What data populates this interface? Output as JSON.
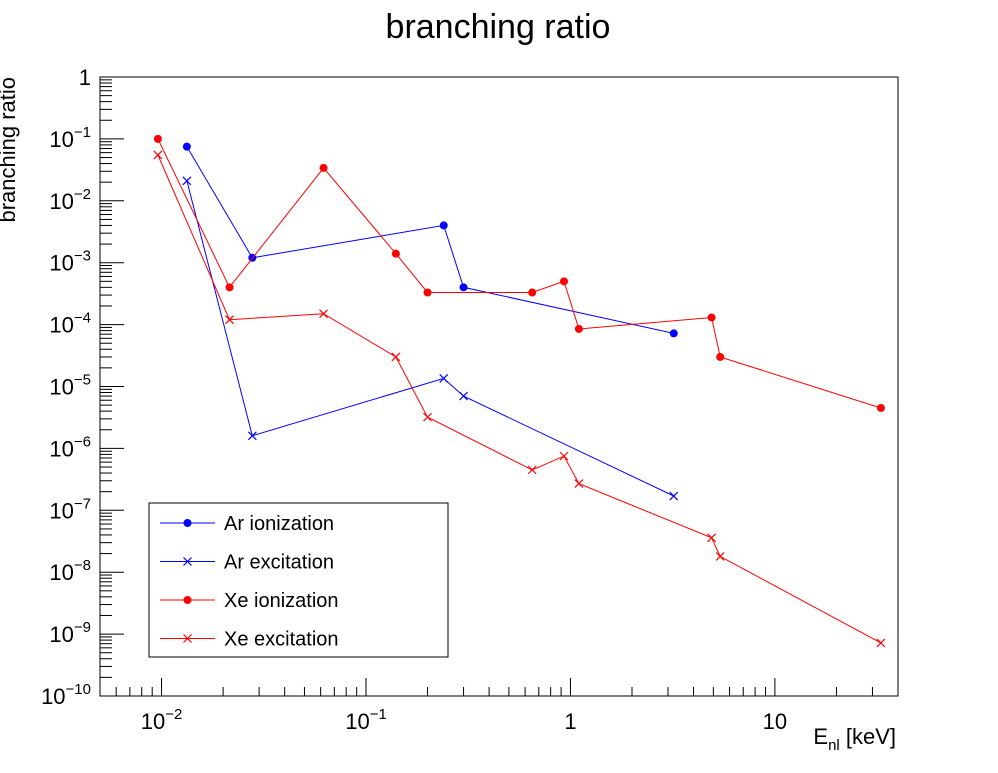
{
  "chart_data": {
    "type": "line",
    "title": "branching ratio",
    "ylabel": "branching ratio",
    "xlabel": {
      "main": "E",
      "sub": "nl",
      "unit": " [keV]"
    },
    "xscale": "log",
    "yscale": "log",
    "xlim": [
      0.005,
      40
    ],
    "ylim": [
      1e-10,
      1
    ],
    "grid": false,
    "legend_position": "bottom-left",
    "x_tick_labels": [
      {
        "value": 0.01,
        "base": "10",
        "exp": "−2"
      },
      {
        "value": 0.1,
        "base": "10",
        "exp": "−1"
      },
      {
        "value": 1,
        "base": "1",
        "exp": ""
      },
      {
        "value": 10,
        "base": "10",
        "exp": ""
      }
    ],
    "y_tick_labels": [
      {
        "value": 1,
        "base": "1",
        "exp": ""
      },
      {
        "value": 0.1,
        "base": "10",
        "exp": "−1"
      },
      {
        "value": 0.01,
        "base": "10",
        "exp": "−2"
      },
      {
        "value": 0.001,
        "base": "10",
        "exp": "−3"
      },
      {
        "value": 0.0001,
        "base": "10",
        "exp": "−4"
      },
      {
        "value": 1e-05,
        "base": "10",
        "exp": "−5"
      },
      {
        "value": 1e-06,
        "base": "10",
        "exp": "−6"
      },
      {
        "value": 1e-07,
        "base": "10",
        "exp": "−7"
      },
      {
        "value": 1e-08,
        "base": "10",
        "exp": "−8"
      },
      {
        "value": 1e-09,
        "base": "10",
        "exp": "−9"
      },
      {
        "value": 1e-10,
        "base": "10",
        "exp": "−10"
      }
    ],
    "series": [
      {
        "name": "Ar ionization",
        "color": "#0000ff",
        "marker": "dot",
        "x": [
          0.0133,
          0.0278,
          0.24,
          0.3,
          3.2
        ],
        "y": [
          0.075,
          0.0012,
          0.004,
          0.0004,
          7.2e-05
        ]
      },
      {
        "name": "Ar excitation",
        "color": "#0000ff",
        "marker": "cross",
        "x": [
          0.0133,
          0.0278,
          0.24,
          0.3,
          3.2
        ],
        "y": [
          0.021,
          1.6e-06,
          1.35e-05,
          7e-06,
          1.7e-07
        ]
      },
      {
        "name": "Xe ionization",
        "color": "#ff0000",
        "marker": "dot",
        "x": [
          0.0096,
          0.0215,
          0.062,
          0.14,
          0.2,
          0.65,
          0.93,
          1.1,
          4.9,
          5.4,
          33
        ],
        "y": [
          0.1,
          0.0004,
          0.034,
          0.0014,
          0.00033,
          0.00033,
          0.0005,
          8.5e-05,
          0.00013,
          3e-05,
          4.5e-06
        ]
      },
      {
        "name": "Xe excitation",
        "color": "#ff0000",
        "marker": "cross",
        "x": [
          0.0096,
          0.0215,
          0.062,
          0.14,
          0.2,
          0.65,
          0.93,
          1.1,
          4.9,
          5.4,
          33
        ],
        "y": [
          0.055,
          0.00012,
          0.00015,
          3e-05,
          3.2e-06,
          4.5e-07,
          7.5e-07,
          2.7e-07,
          3.6e-08,
          1.8e-08,
          7.2e-10
        ]
      }
    ]
  }
}
